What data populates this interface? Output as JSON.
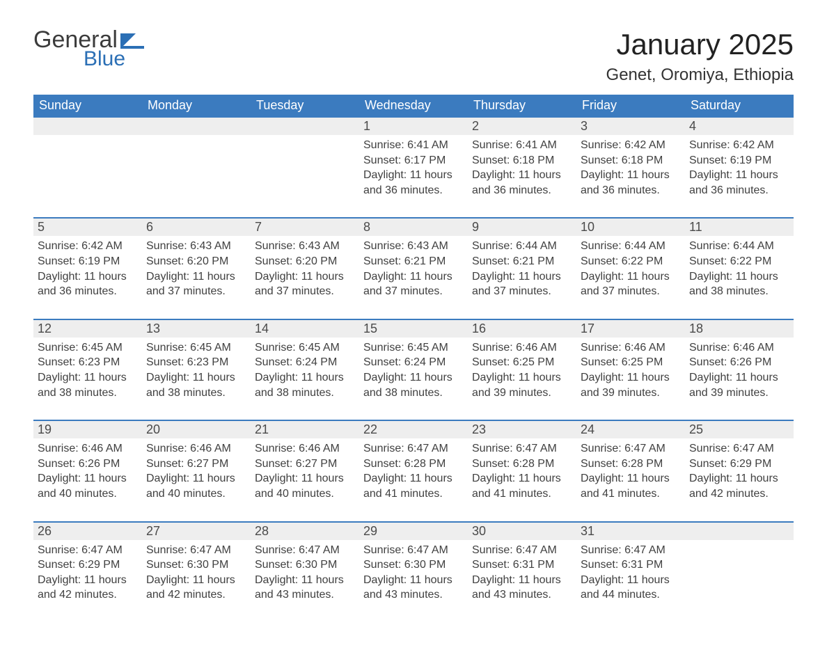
{
  "brand": {
    "general": "General",
    "blue": "Blue",
    "flag_color": "#2b6fb5"
  },
  "title": "January 2025",
  "location": "Genet, Oromiya, Ethiopia",
  "colors": {
    "header_blue": "#3b7bbf",
    "accent_blue": "#2b6fb5",
    "date_bg": "#eeeeee",
    "text": "#333333",
    "background": "#ffffff"
  },
  "typography": {
    "title_fontsize_pt": 32,
    "location_fontsize_pt": 18,
    "header_fontsize_pt": 14,
    "date_fontsize_pt": 14,
    "body_fontsize_pt": 12,
    "font_family": "Arial"
  },
  "calendar": {
    "type": "table",
    "columns": [
      "Sunday",
      "Monday",
      "Tuesday",
      "Wednesday",
      "Thursday",
      "Friday",
      "Saturday"
    ],
    "weeks": [
      [
        null,
        null,
        null,
        {
          "date": "1",
          "sunrise": "Sunrise: 6:41 AM",
          "sunset": "Sunset: 6:17 PM",
          "daylight": "Daylight: 11 hours and 36 minutes."
        },
        {
          "date": "2",
          "sunrise": "Sunrise: 6:41 AM",
          "sunset": "Sunset: 6:18 PM",
          "daylight": "Daylight: 11 hours and 36 minutes."
        },
        {
          "date": "3",
          "sunrise": "Sunrise: 6:42 AM",
          "sunset": "Sunset: 6:18 PM",
          "daylight": "Daylight: 11 hours and 36 minutes."
        },
        {
          "date": "4",
          "sunrise": "Sunrise: 6:42 AM",
          "sunset": "Sunset: 6:19 PM",
          "daylight": "Daylight: 11 hours and 36 minutes."
        }
      ],
      [
        {
          "date": "5",
          "sunrise": "Sunrise: 6:42 AM",
          "sunset": "Sunset: 6:19 PM",
          "daylight": "Daylight: 11 hours and 36 minutes."
        },
        {
          "date": "6",
          "sunrise": "Sunrise: 6:43 AM",
          "sunset": "Sunset: 6:20 PM",
          "daylight": "Daylight: 11 hours and 37 minutes."
        },
        {
          "date": "7",
          "sunrise": "Sunrise: 6:43 AM",
          "sunset": "Sunset: 6:20 PM",
          "daylight": "Daylight: 11 hours and 37 minutes."
        },
        {
          "date": "8",
          "sunrise": "Sunrise: 6:43 AM",
          "sunset": "Sunset: 6:21 PM",
          "daylight": "Daylight: 11 hours and 37 minutes."
        },
        {
          "date": "9",
          "sunrise": "Sunrise: 6:44 AM",
          "sunset": "Sunset: 6:21 PM",
          "daylight": "Daylight: 11 hours and 37 minutes."
        },
        {
          "date": "10",
          "sunrise": "Sunrise: 6:44 AM",
          "sunset": "Sunset: 6:22 PM",
          "daylight": "Daylight: 11 hours and 37 minutes."
        },
        {
          "date": "11",
          "sunrise": "Sunrise: 6:44 AM",
          "sunset": "Sunset: 6:22 PM",
          "daylight": "Daylight: 11 hours and 38 minutes."
        }
      ],
      [
        {
          "date": "12",
          "sunrise": "Sunrise: 6:45 AM",
          "sunset": "Sunset: 6:23 PM",
          "daylight": "Daylight: 11 hours and 38 minutes."
        },
        {
          "date": "13",
          "sunrise": "Sunrise: 6:45 AM",
          "sunset": "Sunset: 6:23 PM",
          "daylight": "Daylight: 11 hours and 38 minutes."
        },
        {
          "date": "14",
          "sunrise": "Sunrise: 6:45 AM",
          "sunset": "Sunset: 6:24 PM",
          "daylight": "Daylight: 11 hours and 38 minutes."
        },
        {
          "date": "15",
          "sunrise": "Sunrise: 6:45 AM",
          "sunset": "Sunset: 6:24 PM",
          "daylight": "Daylight: 11 hours and 38 minutes."
        },
        {
          "date": "16",
          "sunrise": "Sunrise: 6:46 AM",
          "sunset": "Sunset: 6:25 PM",
          "daylight": "Daylight: 11 hours and 39 minutes."
        },
        {
          "date": "17",
          "sunrise": "Sunrise: 6:46 AM",
          "sunset": "Sunset: 6:25 PM",
          "daylight": "Daylight: 11 hours and 39 minutes."
        },
        {
          "date": "18",
          "sunrise": "Sunrise: 6:46 AM",
          "sunset": "Sunset: 6:26 PM",
          "daylight": "Daylight: 11 hours and 39 minutes."
        }
      ],
      [
        {
          "date": "19",
          "sunrise": "Sunrise: 6:46 AM",
          "sunset": "Sunset: 6:26 PM",
          "daylight": "Daylight: 11 hours and 40 minutes."
        },
        {
          "date": "20",
          "sunrise": "Sunrise: 6:46 AM",
          "sunset": "Sunset: 6:27 PM",
          "daylight": "Daylight: 11 hours and 40 minutes."
        },
        {
          "date": "21",
          "sunrise": "Sunrise: 6:46 AM",
          "sunset": "Sunset: 6:27 PM",
          "daylight": "Daylight: 11 hours and 40 minutes."
        },
        {
          "date": "22",
          "sunrise": "Sunrise: 6:47 AM",
          "sunset": "Sunset: 6:28 PM",
          "daylight": "Daylight: 11 hours and 41 minutes."
        },
        {
          "date": "23",
          "sunrise": "Sunrise: 6:47 AM",
          "sunset": "Sunset: 6:28 PM",
          "daylight": "Daylight: 11 hours and 41 minutes."
        },
        {
          "date": "24",
          "sunrise": "Sunrise: 6:47 AM",
          "sunset": "Sunset: 6:28 PM",
          "daylight": "Daylight: 11 hours and 41 minutes."
        },
        {
          "date": "25",
          "sunrise": "Sunrise: 6:47 AM",
          "sunset": "Sunset: 6:29 PM",
          "daylight": "Daylight: 11 hours and 42 minutes."
        }
      ],
      [
        {
          "date": "26",
          "sunrise": "Sunrise: 6:47 AM",
          "sunset": "Sunset: 6:29 PM",
          "daylight": "Daylight: 11 hours and 42 minutes."
        },
        {
          "date": "27",
          "sunrise": "Sunrise: 6:47 AM",
          "sunset": "Sunset: 6:30 PM",
          "daylight": "Daylight: 11 hours and 42 minutes."
        },
        {
          "date": "28",
          "sunrise": "Sunrise: 6:47 AM",
          "sunset": "Sunset: 6:30 PM",
          "daylight": "Daylight: 11 hours and 43 minutes."
        },
        {
          "date": "29",
          "sunrise": "Sunrise: 6:47 AM",
          "sunset": "Sunset: 6:30 PM",
          "daylight": "Daylight: 11 hours and 43 minutes."
        },
        {
          "date": "30",
          "sunrise": "Sunrise: 6:47 AM",
          "sunset": "Sunset: 6:31 PM",
          "daylight": "Daylight: 11 hours and 43 minutes."
        },
        {
          "date": "31",
          "sunrise": "Sunrise: 6:47 AM",
          "sunset": "Sunset: 6:31 PM",
          "daylight": "Daylight: 11 hours and 44 minutes."
        },
        null
      ]
    ]
  }
}
